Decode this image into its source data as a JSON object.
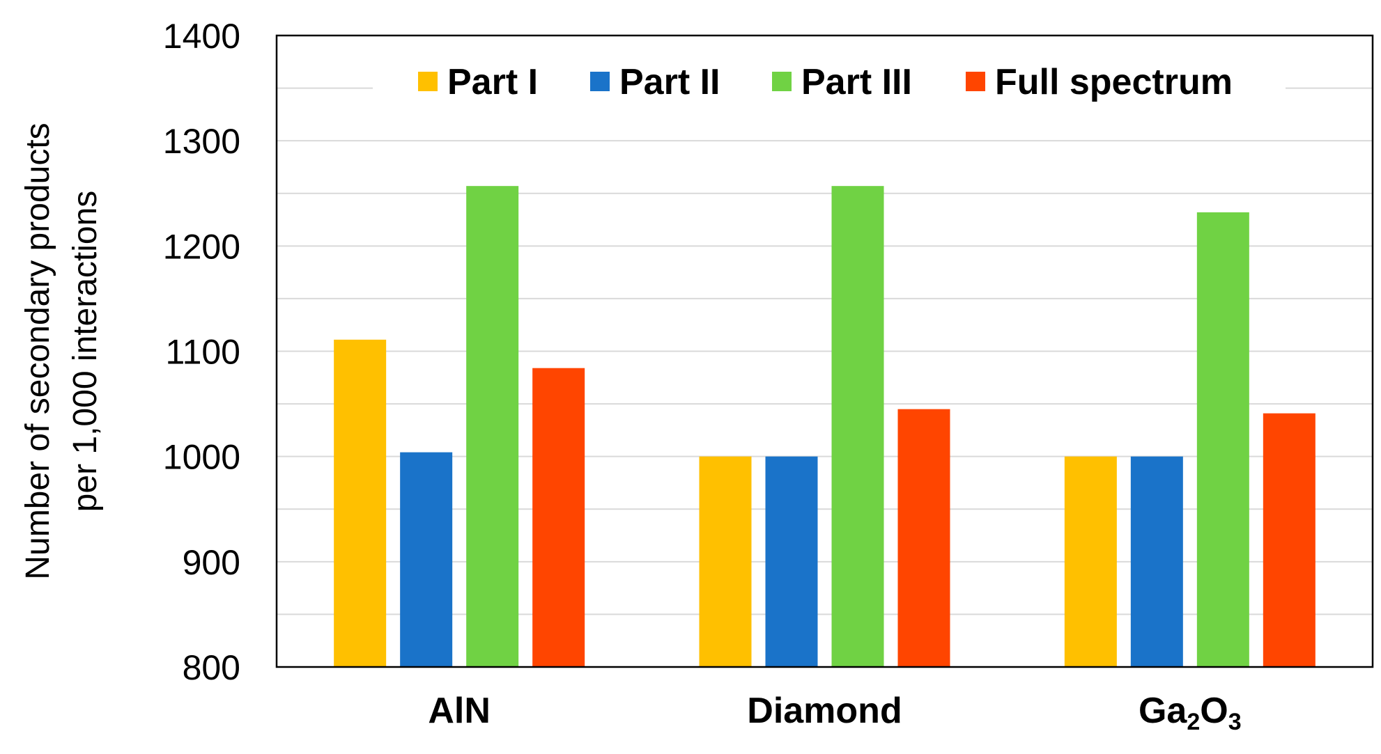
{
  "chart_data": {
    "type": "bar",
    "categories": [
      "AlN",
      "Diamond",
      "Ga2O3"
    ],
    "category_labels": [
      {
        "text": "AlN",
        "parts": []
      },
      {
        "text": "Diamond",
        "parts": []
      },
      {
        "text": "Ga2O3",
        "parts": [
          {
            "t": "Ga",
            "sub": false
          },
          {
            "t": "2",
            "sub": true
          },
          {
            "t": "O",
            "sub": false
          },
          {
            "t": "3",
            "sub": true
          }
        ]
      }
    ],
    "series": [
      {
        "name": "Part I",
        "color": "#FFC000",
        "values": [
          1111,
          1000,
          1000
        ]
      },
      {
        "name": "Part II",
        "color": "#1A73C9",
        "values": [
          1004,
          1000,
          1000
        ]
      },
      {
        "name": "Part III",
        "color": "#70D244",
        "values": [
          1257,
          1257,
          1232
        ]
      },
      {
        "name": "Full spectrum",
        "color": "#FF4500",
        "values": [
          1084,
          1045,
          1041
        ]
      }
    ],
    "title": "",
    "xlabel": "",
    "ylabel_lines": [
      "Number of secondary products",
      "per 1,000 interactions"
    ],
    "ylim": [
      800,
      1400
    ],
    "yticks": [
      800,
      900,
      1000,
      1100,
      1200,
      1300,
      1400
    ],
    "minor_gridlines": [
      850,
      950,
      1050,
      1150,
      1250,
      1350
    ],
    "grid": true,
    "legend_position": "top-inside"
  }
}
